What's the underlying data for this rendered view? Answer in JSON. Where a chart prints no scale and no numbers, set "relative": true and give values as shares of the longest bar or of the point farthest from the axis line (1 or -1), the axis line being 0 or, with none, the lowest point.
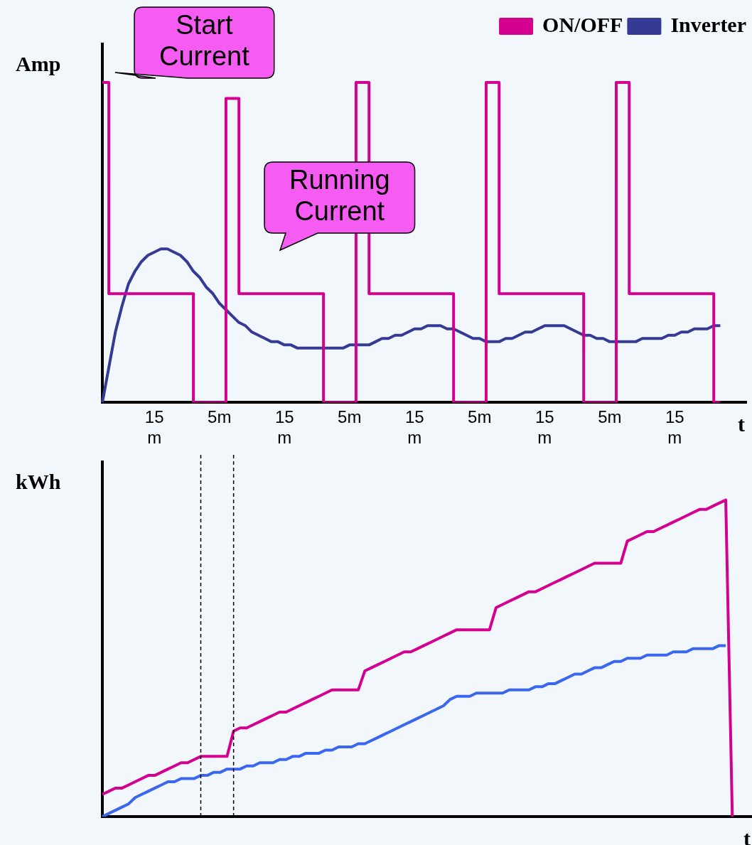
{
  "chart_data": [
    {
      "type": "line",
      "relative": true,
      "ylabel": "Amp",
      "xlabel": "t",
      "legend": "top right",
      "tick_labels": "x",
      "marker": "none",
      "line_style": "solid",
      "grid": false,
      "categories": [
        null,
        null,
        null,
        null,
        null,
        null,
        null,
        null,
        "15 m",
        null,
        null,
        null,
        null,
        null,
        null,
        null,
        null,
        null,
        "5m",
        null,
        null,
        null,
        null,
        null,
        null,
        null,
        null,
        null,
        "15 m",
        null,
        null,
        null,
        null,
        null,
        null,
        null,
        null,
        null,
        "5m",
        null,
        null,
        null,
        null,
        null,
        null,
        null,
        null,
        null,
        "15 m",
        null,
        null,
        null,
        null,
        null,
        null,
        null,
        null,
        null,
        "5m",
        null,
        null,
        null,
        null,
        null,
        null,
        null,
        null,
        null,
        "15 m",
        null,
        null,
        null,
        null,
        null,
        null,
        null,
        null,
        null,
        "5m",
        null,
        null,
        null,
        null,
        null,
        null,
        null,
        null,
        null,
        "15 m",
        null,
        null,
        null,
        null,
        null,
        null,
        null,
        null,
        null,
        null,
        null
      ],
      "series": [
        {
          "name": "ON/OFF",
          "type": "step",
          "color": "#d4008f",
          "values": [
            1,
            1,
            0.34,
            0.34,
            0.34,
            0.34,
            0.34,
            0.34,
            0.34,
            0.34,
            0.34,
            0.34,
            0.34,
            0.34,
            0.34,
            0,
            0,
            0,
            0,
            0,
            0.95,
            0.95,
            0.34,
            0.34,
            0.34,
            0.34,
            0.34,
            0.34,
            0.34,
            0.34,
            0.34,
            0.34,
            0.34,
            0.34,
            0.34,
            0,
            0,
            0,
            0,
            0,
            1,
            1,
            0.34,
            0.34,
            0.34,
            0.34,
            0.34,
            0.34,
            0.34,
            0.34,
            0.34,
            0.34,
            0.34,
            0.34,
            0.34,
            0,
            0,
            0,
            0,
            0,
            1,
            1,
            0.34,
            0.34,
            0.34,
            0.34,
            0.34,
            0.34,
            0.34,
            0.34,
            0.34,
            0.34,
            0.34,
            0.34,
            0.34,
            0,
            0,
            0,
            0,
            0,
            1,
            1,
            0.34,
            0.34,
            0.34,
            0.34,
            0.34,
            0.34,
            0.34,
            0.34,
            0.34,
            0.34,
            0.34,
            0.34,
            0.34,
            0,
            null,
            null,
            null,
            null
          ]
        },
        {
          "name": "Inverter",
          "color": "#353b95",
          "values": [
            0,
            0.11,
            0.22,
            0.3,
            0.37,
            0.41,
            0.44,
            0.46,
            0.47,
            0.48,
            0.48,
            0.47,
            0.46,
            0.44,
            0.41,
            0.39,
            0.36,
            0.34,
            0.31,
            0.29,
            0.27,
            0.25,
            0.24,
            0.22,
            0.21,
            0.2,
            0.19,
            0.19,
            0.18,
            0.18,
            0.17,
            0.17,
            0.17,
            0.17,
            0.17,
            0.17,
            0.17,
            0.17,
            0.18,
            0.18,
            0.18,
            0.18,
            0.19,
            0.2,
            0.2,
            0.21,
            0.21,
            0.22,
            0.23,
            0.23,
            0.24,
            0.24,
            0.24,
            0.23,
            0.23,
            0.22,
            0.21,
            0.2,
            0.2,
            0.19,
            0.19,
            0.19,
            0.2,
            0.2,
            0.21,
            0.22,
            0.22,
            0.23,
            0.24,
            0.24,
            0.24,
            0.24,
            0.23,
            0.22,
            0.21,
            0.21,
            0.2,
            0.2,
            0.19,
            0.19,
            0.19,
            0.19,
            0.19,
            0.2,
            0.2,
            0.2,
            0.2,
            0.21,
            0.21,
            0.22,
            0.22,
            0.23,
            0.23,
            0.23,
            0.24,
            0.24,
            null,
            null,
            null,
            null
          ]
        }
      ],
      "annotations": [
        "Start Current",
        "Running Current"
      ]
    },
    {
      "type": "line",
      "relative": true,
      "ylabel": "kWh",
      "xlabel": "t",
      "tick_labels": false,
      "marker": "none",
      "line_style": "solid",
      "grid": false,
      "categories": [
        null,
        null,
        null,
        null,
        null,
        null,
        null,
        null,
        null,
        null,
        null,
        null,
        null,
        null,
        null,
        null,
        null,
        null,
        null,
        null,
        null,
        null,
        null,
        null,
        null,
        null,
        null,
        null,
        null,
        null,
        null,
        null,
        null,
        null,
        null,
        null,
        null,
        null,
        null,
        null,
        null,
        null,
        null,
        null,
        null,
        null,
        null,
        null,
        null,
        null,
        null,
        null,
        null,
        null,
        null,
        null,
        null,
        null,
        null,
        null,
        null,
        null,
        null,
        null,
        null,
        null,
        null,
        null,
        null,
        null,
        null,
        null,
        null,
        null,
        null,
        null,
        null,
        null,
        null,
        null,
        null,
        null,
        null,
        null,
        null,
        null,
        null,
        null,
        null,
        null,
        null,
        null,
        null,
        null,
        null,
        null,
        null,
        null,
        null,
        null
      ],
      "series": [
        {
          "color": "#d4008f",
          "values": [
            0.07,
            0.08,
            0.09,
            0.09,
            0.1,
            0.11,
            0.12,
            0.13,
            0.13,
            0.14,
            0.15,
            0.16,
            0.17,
            0.17,
            0.18,
            0.19,
            0.19,
            0.19,
            0.19,
            0.19,
            0.27,
            0.28,
            0.28,
            0.29,
            0.3,
            0.31,
            0.32,
            0.33,
            0.33,
            0.34,
            0.35,
            0.36,
            0.37,
            0.38,
            0.39,
            0.4,
            0.4,
            0.4,
            0.4,
            0.4,
            0.46,
            0.47,
            0.48,
            0.49,
            0.5,
            0.51,
            0.52,
            0.52,
            0.53,
            0.54,
            0.55,
            0.56,
            0.57,
            0.58,
            0.59,
            0.59,
            0.59,
            0.59,
            0.59,
            0.59,
            0.66,
            0.67,
            0.68,
            0.69,
            0.7,
            0.71,
            0.71,
            0.72,
            0.73,
            0.74,
            0.75,
            0.76,
            0.77,
            0.78,
            0.79,
            0.8,
            0.8,
            0.8,
            0.8,
            0.8,
            0.87,
            0.88,
            0.89,
            0.9,
            0.9,
            0.91,
            0.92,
            0.93,
            0.94,
            0.95,
            0.96,
            0.97,
            0.97,
            0.98,
            0.99,
            1,
            0,
            null,
            null,
            null
          ]
        },
        {
          "color": "#3a66f0",
          "values": [
            0,
            0.01,
            0.02,
            0.03,
            0.04,
            0.06,
            0.07,
            0.08,
            0.09,
            0.1,
            0.11,
            0.11,
            0.12,
            0.12,
            0.12,
            0.13,
            0.13,
            0.14,
            0.14,
            0.15,
            0.15,
            0.15,
            0.16,
            0.16,
            0.17,
            0.17,
            0.17,
            0.18,
            0.18,
            0.19,
            0.19,
            0.2,
            0.2,
            0.2,
            0.21,
            0.21,
            0.22,
            0.22,
            0.22,
            0.23,
            0.23,
            0.24,
            0.25,
            0.26,
            0.27,
            0.28,
            0.29,
            0.3,
            0.31,
            0.32,
            0.33,
            0.34,
            0.35,
            0.37,
            0.38,
            0.38,
            0.38,
            0.39,
            0.39,
            0.39,
            0.39,
            0.39,
            0.4,
            0.4,
            0.4,
            0.4,
            0.41,
            0.41,
            0.42,
            0.42,
            0.43,
            0.44,
            0.45,
            0.45,
            0.46,
            0.47,
            0.47,
            0.48,
            0.49,
            0.49,
            0.5,
            0.5,
            0.5,
            0.51,
            0.51,
            0.51,
            0.51,
            0.52,
            0.52,
            0.52,
            0.53,
            0.53,
            0.53,
            0.53,
            0.54,
            0.54,
            null,
            null,
            null,
            null
          ]
        }
      ]
    }
  ]
}
